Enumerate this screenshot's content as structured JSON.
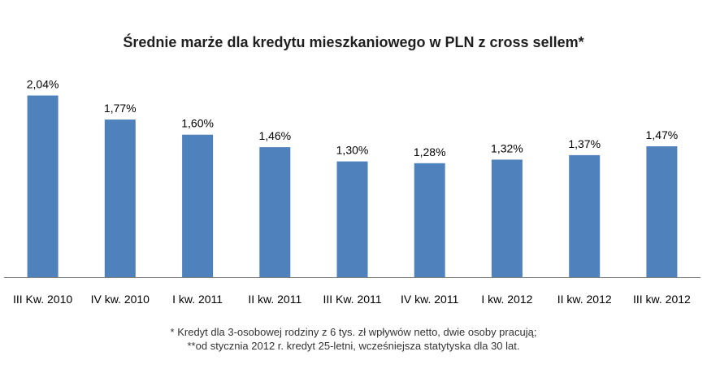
{
  "chart_data": {
    "type": "bar",
    "title": "Średnie marże dla kredytu mieszkaniowego w PLN z cross sellem*",
    "categories": [
      "III Kw. 2010",
      "IV kw. 2010",
      "I kw. 2011",
      "II kw. 2011",
      "III Kw. 2011",
      "IV kw. 2011",
      "I kw. 2012",
      "II kw. 2012",
      "III kw. 2012"
    ],
    "values": [
      2.04,
      1.77,
      1.6,
      1.46,
      1.3,
      1.28,
      1.32,
      1.37,
      1.47
    ],
    "value_labels": [
      "2,04%",
      "1,77%",
      "1,60%",
      "1,46%",
      "1,30%",
      "1,28%",
      "1,32%",
      "1,37%",
      "1,47%"
    ],
    "xlabel": "",
    "ylabel": "",
    "ylim": [
      0,
      2.2
    ],
    "grid": false,
    "legend": "none",
    "bar_color": "#4f81bd"
  },
  "footnotes": [
    "* Kredyt dla 3-osobowej rodziny z 6 tys. zł wpływów netto, dwie osoby pracują;",
    "**od stycznia 2012 r. kredyt 25-letni, wcześniejsza statytyska dla 30 lat."
  ]
}
